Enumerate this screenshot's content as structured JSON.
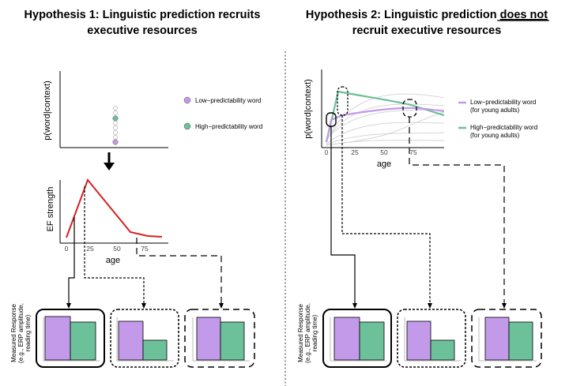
{
  "hypothesis1": {
    "title_line1": "Hypothesis 1: Linguistic prediction recruits",
    "title_line2": "executive resources",
    "top_plot": {
      "ylabel": "p(word|context)"
    },
    "legend": {
      "low": "Low−predictability word",
      "high": "High−predictability word"
    },
    "ef_plot": {
      "ylabel": "EF strength",
      "xlabel": "age",
      "ticks": [
        "0",
        "25",
        "50",
        "75"
      ]
    },
    "response_label": {
      "line1": "Measured Response",
      "line2": "(e.g., ERP amplitude,",
      "line3": "reading time)"
    }
  },
  "hypothesis2": {
    "title_line1": "Hypothesis 2: Linguistic prediction",
    "title_underlined": "does not",
    "title_line2": "recruit executive resources",
    "plot": {
      "ylabel": "p(word|context)",
      "xlabel": "age",
      "ticks": [
        "0",
        "25",
        "50",
        "75"
      ]
    },
    "legend": {
      "low_line1": "Low−predictability word",
      "low_line2": "(for young adults)",
      "high_line1": "High−predictability word",
      "high_line2": "(for young adults)"
    },
    "response_label": {
      "line1": "Measured Response",
      "line2": "(e.g., ERP amplitude,",
      "line3": "reading time)"
    }
  },
  "colors": {
    "purple": "#c39ae9",
    "green": "#6cc09a",
    "red": "#d62020"
  }
}
